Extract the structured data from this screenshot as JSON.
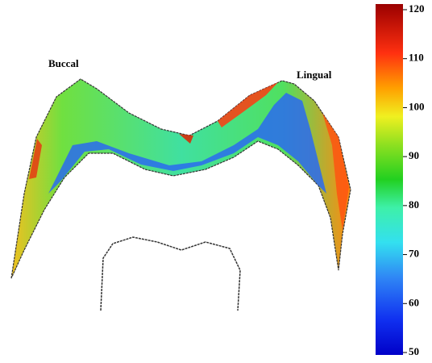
{
  "labels": {
    "left": "Buccal",
    "right": "Lingual"
  },
  "colorbar": {
    "lim": [
      50,
      120
    ],
    "ticks": [
      50,
      60,
      70,
      80,
      90,
      100,
      110,
      120
    ]
  }
}
